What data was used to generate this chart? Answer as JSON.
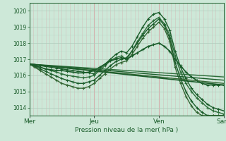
{
  "bg_color": "#cde8d8",
  "grid_color_v": "#d4a8a8",
  "grid_color_h": "#b0ccbc",
  "line_color_dark": "#1a5c2a",
  "ylabel_text": "Pression niveau de la mer( hPa )",
  "xtick_labels": [
    "Mer",
    "Jeu",
    "Ven",
    "Sam"
  ],
  "xtick_positions": [
    0,
    96,
    192,
    288
  ],
  "ylim": [
    1013.5,
    1020.5
  ],
  "yticks": [
    1014,
    1015,
    1016,
    1017,
    1018,
    1019,
    1020
  ],
  "lines": [
    {
      "color": "#1a5c2a",
      "lw": 1.0,
      "marker": "+",
      "ms": 3,
      "x": [
        0,
        8,
        16,
        24,
        32,
        40,
        48,
        56,
        64,
        72,
        80,
        88,
        96,
        104,
        112,
        120,
        128,
        136,
        144,
        152,
        160,
        168,
        176,
        184,
        192,
        200,
        208,
        216,
        224,
        232,
        240,
        248,
        256,
        264,
        272,
        280,
        288
      ],
      "y": [
        1016.7,
        1016.65,
        1016.6,
        1016.55,
        1016.5,
        1016.45,
        1016.4,
        1016.35,
        1016.3,
        1016.25,
        1016.2,
        1016.15,
        1016.1,
        1016.4,
        1016.7,
        1017.0,
        1017.3,
        1017.5,
        1017.4,
        1017.8,
        1018.4,
        1019.0,
        1019.5,
        1019.8,
        1019.9,
        1019.5,
        1018.8,
        1017.5,
        1016.5,
        1015.8,
        1015.2,
        1014.8,
        1014.5,
        1014.2,
        1014.0,
        1013.9,
        1013.8
      ]
    },
    {
      "color": "#2d6e3a",
      "lw": 1.0,
      "marker": "+",
      "ms": 3,
      "x": [
        0,
        8,
        16,
        24,
        32,
        40,
        48,
        56,
        64,
        72,
        80,
        88,
        96,
        104,
        112,
        120,
        128,
        136,
        144,
        152,
        160,
        168,
        176,
        184,
        192,
        200,
        208,
        216,
        224,
        232,
        240,
        248,
        256,
        264,
        272,
        280,
        288
      ],
      "y": [
        1016.7,
        1016.6,
        1016.5,
        1016.4,
        1016.3,
        1016.2,
        1016.1,
        1016.0,
        1015.95,
        1015.9,
        1015.85,
        1015.9,
        1016.0,
        1016.3,
        1016.6,
        1016.9,
        1017.1,
        1017.2,
        1017.0,
        1017.5,
        1018.1,
        1018.6,
        1019.1,
        1019.4,
        1019.6,
        1019.2,
        1018.5,
        1017.2,
        1016.2,
        1015.5,
        1015.0,
        1014.6,
        1014.3,
        1014.0,
        1013.8,
        1013.7,
        1013.6
      ]
    },
    {
      "color": "#1a5c2a",
      "lw": 1.0,
      "marker": "+",
      "ms": 3,
      "x": [
        0,
        8,
        16,
        24,
        32,
        40,
        48,
        56,
        64,
        72,
        80,
        88,
        96,
        104,
        112,
        120,
        128,
        136,
        144,
        152,
        160,
        168,
        176,
        184,
        192,
        200,
        208,
        216,
        224,
        232,
        240,
        248,
        256,
        264,
        272,
        280,
        288
      ],
      "y": [
        1016.7,
        1016.55,
        1016.4,
        1016.25,
        1016.1,
        1015.95,
        1015.8,
        1015.7,
        1015.6,
        1015.5,
        1015.5,
        1015.6,
        1015.7,
        1016.0,
        1016.3,
        1016.6,
        1016.85,
        1017.0,
        1017.1,
        1017.5,
        1018.0,
        1018.5,
        1018.9,
        1019.2,
        1019.5,
        1019.1,
        1018.3,
        1016.8,
        1015.8,
        1015.0,
        1014.4,
        1014.0,
        1013.7,
        1013.5,
        1013.5,
        1013.5,
        1013.5
      ]
    },
    {
      "color": "#336633",
      "lw": 1.0,
      "marker": "+",
      "ms": 3,
      "x": [
        0,
        8,
        16,
        24,
        32,
        40,
        48,
        56,
        64,
        72,
        80,
        88,
        96,
        104,
        112,
        120,
        128,
        136,
        144,
        152,
        160,
        168,
        176,
        184,
        192,
        200,
        208,
        216,
        224,
        232,
        240,
        248,
        256,
        264,
        272,
        280,
        288
      ],
      "y": [
        1016.7,
        1016.5,
        1016.3,
        1016.1,
        1015.9,
        1015.7,
        1015.5,
        1015.4,
        1015.3,
        1015.2,
        1015.2,
        1015.3,
        1015.5,
        1015.8,
        1016.1,
        1016.4,
        1016.65,
        1016.8,
        1016.9,
        1017.3,
        1017.8,
        1018.3,
        1018.7,
        1019.0,
        1019.3,
        1018.9,
        1018.1,
        1016.5,
        1015.5,
        1014.7,
        1014.1,
        1013.7,
        1013.5,
        1013.5,
        1013.5,
        1013.5,
        1013.5
      ]
    },
    {
      "color": "#1a5c2a",
      "lw": 1.2,
      "marker": "+",
      "ms": 3,
      "x": [
        0,
        8,
        16,
        24,
        32,
        40,
        48,
        56,
        64,
        72,
        80,
        88,
        96,
        104,
        112,
        120,
        128,
        136,
        144,
        152,
        160,
        168,
        176,
        184,
        192,
        200,
        208,
        216,
        224,
        232,
        240,
        248,
        256,
        264,
        272,
        280,
        288
      ],
      "y": [
        1016.7,
        1016.6,
        1016.5,
        1016.4,
        1016.35,
        1016.3,
        1016.3,
        1016.25,
        1016.2,
        1016.15,
        1016.15,
        1016.2,
        1016.3,
        1016.5,
        1016.7,
        1016.9,
        1017.0,
        1017.1,
        1017.0,
        1017.2,
        1017.4,
        1017.6,
        1017.8,
        1017.9,
        1018.0,
        1017.8,
        1017.5,
        1017.0,
        1016.6,
        1016.2,
        1015.9,
        1015.7,
        1015.5,
        1015.4,
        1015.4,
        1015.4,
        1015.4
      ]
    },
    {
      "color": "#2d6e3a",
      "lw": 1.0,
      "marker": null,
      "ms": 0,
      "x": [
        0,
        288
      ],
      "y": [
        1016.7,
        1015.9
      ]
    },
    {
      "color": "#1a5c2a",
      "lw": 1.0,
      "marker": null,
      "ms": 0,
      "x": [
        0,
        288
      ],
      "y": [
        1016.7,
        1015.7
      ]
    },
    {
      "color": "#336633",
      "lw": 1.0,
      "marker": null,
      "ms": 0,
      "x": [
        0,
        288
      ],
      "y": [
        1016.7,
        1015.5
      ]
    },
    {
      "color": "#1a5c2a",
      "lw": 1.2,
      "marker": null,
      "ms": 0,
      "x": [
        0,
        288
      ],
      "y": [
        1016.7,
        1015.4
      ]
    }
  ]
}
